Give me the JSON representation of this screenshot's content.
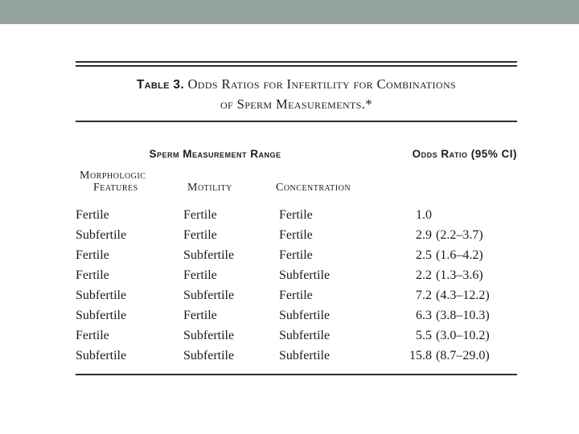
{
  "slide": {
    "top_bar_color": "#93A29A",
    "background_color": "#FFFFFF",
    "text_color": "#1B1B1B",
    "rule_color": "#2E2E2E"
  },
  "table": {
    "title": {
      "label": "Table 3.",
      "line1": "Odds Ratios for Infertility for Combinations",
      "line2": "of Sperm Measurements.*"
    },
    "header": {
      "group": "Sperm Measurement Range",
      "odds": "Odds Ratio (95% CI)"
    },
    "subheaders": {
      "morphologic_line1": "Morphologic",
      "morphologic_line2": "Features",
      "motility": "Motility",
      "concentration": "Concentration"
    },
    "rows": [
      {
        "morphologic": "Fertile",
        "motility": "Fertile",
        "concentration": "Fertile",
        "odds": "1.0",
        "ci": ""
      },
      {
        "morphologic": "Subfertile",
        "motility": "Fertile",
        "concentration": "Fertile",
        "odds": "2.9",
        "ci": "(2.2–3.7)"
      },
      {
        "morphologic": "Fertile",
        "motility": "Subfertile",
        "concentration": "Fertile",
        "odds": "2.5",
        "ci": "(1.6–4.2)"
      },
      {
        "morphologic": "Fertile",
        "motility": "Fertile",
        "concentration": "Subfertile",
        "odds": "2.2",
        "ci": "(1.3–3.6)"
      },
      {
        "morphologic": "Subfertile",
        "motility": "Subfertile",
        "concentration": "Fertile",
        "odds": "7.2",
        "ci": "(4.3–12.2)"
      },
      {
        "morphologic": "Subfertile",
        "motility": "Fertile",
        "concentration": "Subfertile",
        "odds": "6.3",
        "ci": "(3.8–10.3)"
      },
      {
        "morphologic": "Fertile",
        "motility": "Subfertile",
        "concentration": "Subfertile",
        "odds": "5.5",
        "ci": "(3.0–10.2)"
      },
      {
        "morphologic": "Subfertile",
        "motility": "Subfertile",
        "concentration": "Subfertile",
        "odds": "15.8",
        "ci": "(8.7–29.0)"
      }
    ]
  },
  "chart_data": {
    "type": "table",
    "title": "Table 3. Odds Ratios for Infertility for Combinations of Sperm Measurements.*",
    "columns": [
      "Morphologic Features",
      "Motility",
      "Concentration",
      "Odds Ratio (95% CI)"
    ],
    "rows": [
      [
        "Fertile",
        "Fertile",
        "Fertile",
        "1.0"
      ],
      [
        "Subfertile",
        "Fertile",
        "Fertile",
        "2.9 (2.2–3.7)"
      ],
      [
        "Fertile",
        "Subfertile",
        "Fertile",
        "2.5 (1.6–4.2)"
      ],
      [
        "Fertile",
        "Fertile",
        "Subfertile",
        "2.2 (1.3–3.6)"
      ],
      [
        "Subfertile",
        "Subfertile",
        "Fertile",
        "7.2 (4.3–12.2)"
      ],
      [
        "Subfertile",
        "Fertile",
        "Subfertile",
        "6.3 (3.8–10.3)"
      ],
      [
        "Fertile",
        "Subfertile",
        "Subfertile",
        "5.5 (3.0–10.2)"
      ],
      [
        "Subfertile",
        "Subfertile",
        "Subfertile",
        "15.8 (8.7–29.0)"
      ]
    ]
  }
}
